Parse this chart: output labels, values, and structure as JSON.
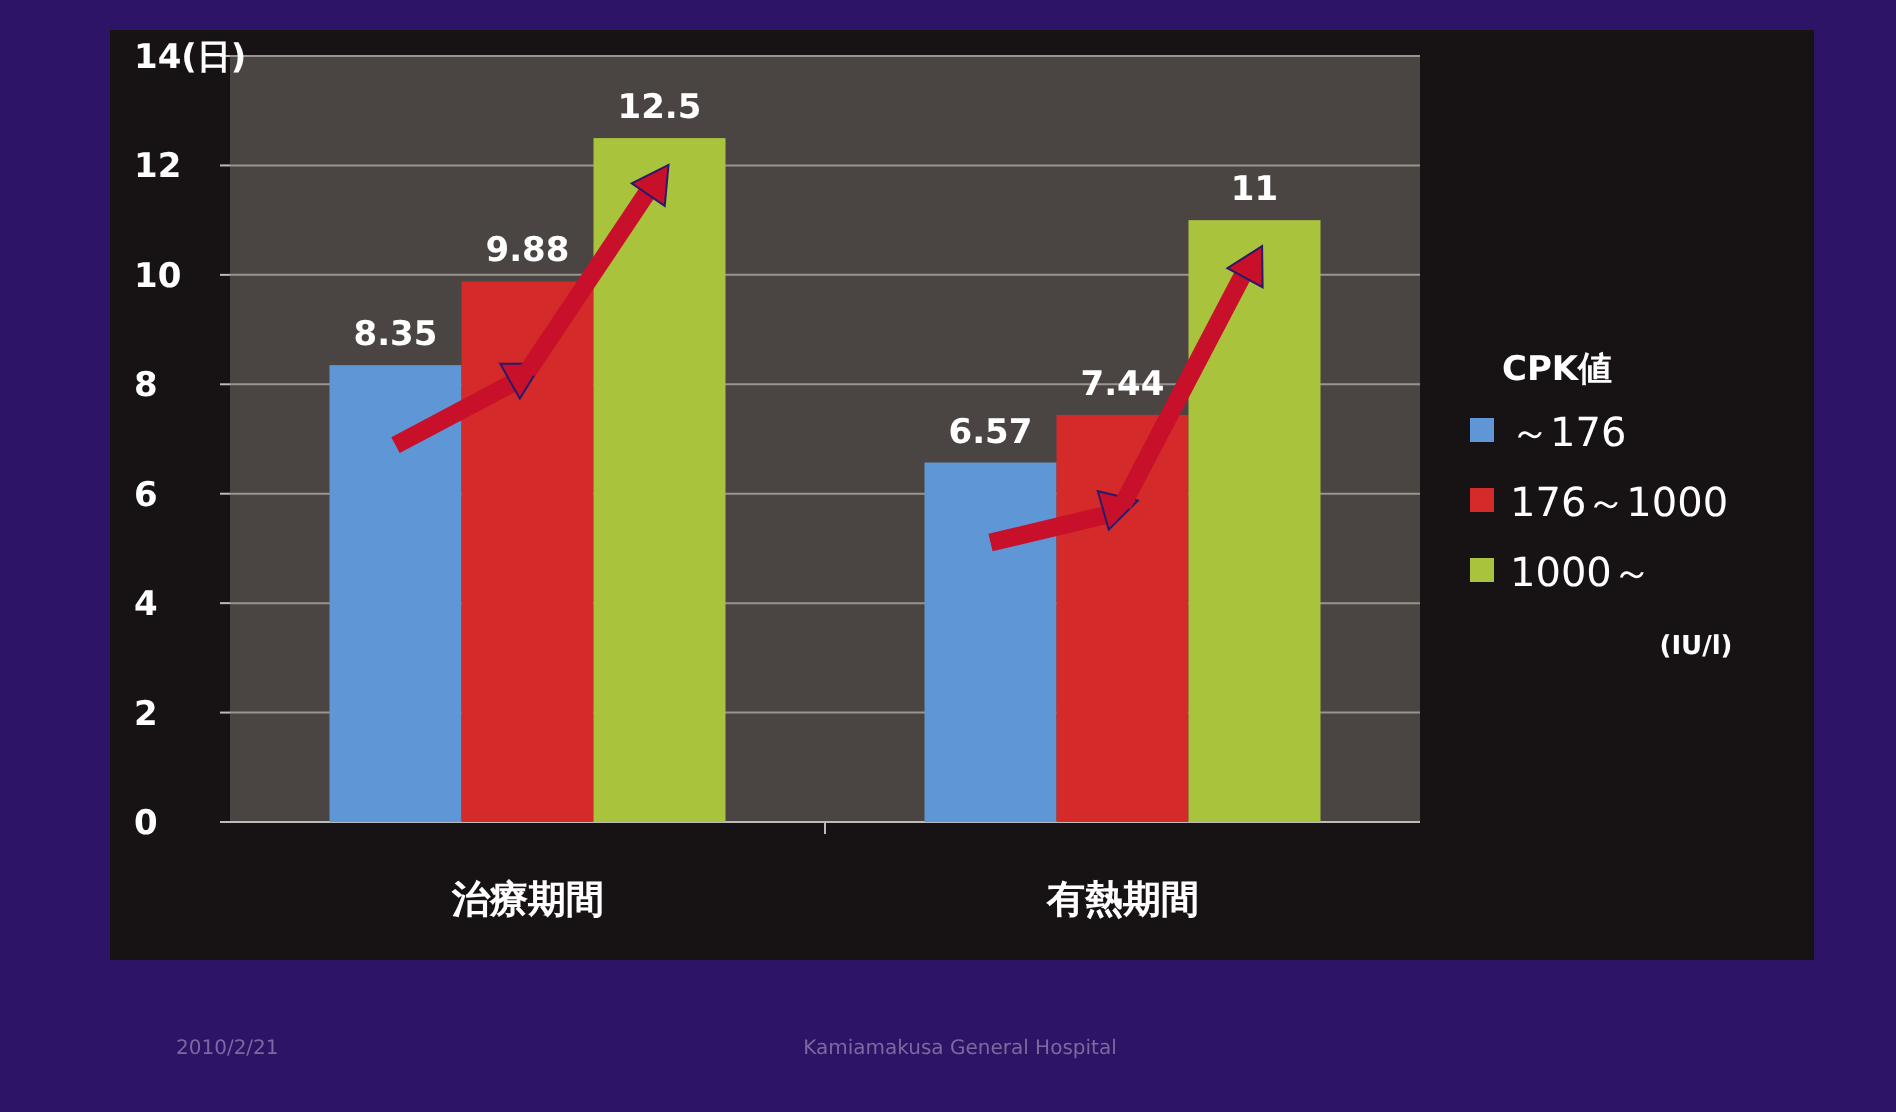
{
  "chart_data": {
    "type": "bar",
    "categories": [
      "治療期間",
      "有熱期間"
    ],
    "legend_title": "CPK値",
    "series": [
      {
        "name": "～176",
        "color": "#5f97d6",
        "values": [
          8.35,
          6.57
        ]
      },
      {
        "name": "176～1000",
        "color": "#d42a2a",
        "values": [
          9.88,
          7.44
        ]
      },
      {
        "name": "1000～",
        "color": "#a9c43c",
        "values": [
          12.5,
          11
        ]
      }
    ],
    "ylim": [
      0,
      14
    ],
    "yticks": [
      0,
      2,
      4,
      6,
      8,
      10,
      12,
      {
        "value": 14,
        "label": "14(日)"
      }
    ],
    "grid": "y",
    "legend": "right",
    "data_labels": true,
    "annotations": [
      "(IU/l)",
      "2010/2/21",
      "Kamiamakusa General Hospital"
    ]
  }
}
